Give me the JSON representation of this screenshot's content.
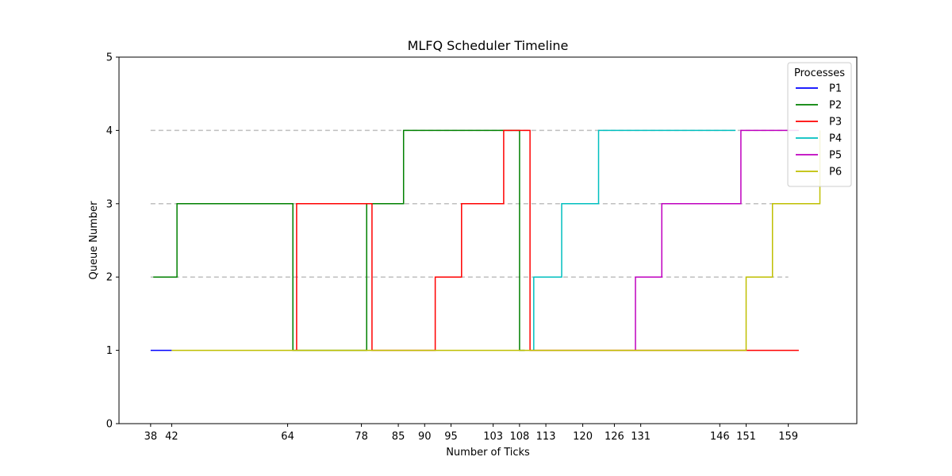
{
  "chart_data": {
    "type": "line",
    "title": "MLFQ Scheduler Timeline",
    "xlabel": "Number of Ticks",
    "ylabel": "Queue Number",
    "xlim": [
      32,
      172
    ],
    "ylim": [
      0,
      5
    ],
    "xticks": [
      38,
      42,
      64,
      78,
      85,
      90,
      95,
      103,
      108,
      113,
      120,
      126,
      131,
      146,
      151,
      159
    ],
    "yticks": [
      0,
      1,
      2,
      3,
      4,
      5
    ],
    "grid": false,
    "reference_lines": [
      {
        "y": 2,
        "x_from": 38,
        "x_to": 159
      },
      {
        "y": 3,
        "x_from": 38,
        "x_to": 159
      },
      {
        "y": 4,
        "x_from": 38,
        "x_to": 159
      }
    ],
    "legend": {
      "title": "Processes",
      "position": "top-right"
    },
    "series": [
      {
        "name": "P1",
        "color": "#0000ff",
        "points": [
          [
            38,
            1
          ],
          [
            42,
            1
          ]
        ]
      },
      {
        "name": "P2",
        "color": "#008000",
        "points": [
          [
            38.5,
            2
          ],
          [
            43,
            2
          ],
          [
            43,
            3
          ],
          [
            65,
            3
          ],
          [
            65,
            1
          ],
          [
            79,
            1
          ],
          [
            79,
            3
          ],
          [
            86,
            3
          ],
          [
            86,
            4
          ],
          [
            108,
            4
          ],
          [
            108,
            1
          ],
          [
            109,
            1
          ]
        ]
      },
      {
        "name": "P3",
        "color": "#ff0000",
        "points": [
          [
            65.7,
            1
          ],
          [
            65.7,
            3
          ],
          [
            80,
            3
          ],
          [
            80,
            1
          ],
          [
            92,
            1
          ],
          [
            92,
            2
          ],
          [
            97,
            2
          ],
          [
            97,
            3
          ],
          [
            105,
            3
          ],
          [
            105,
            4
          ],
          [
            110,
            4
          ],
          [
            110,
            1
          ],
          [
            161,
            1
          ]
        ]
      },
      {
        "name": "P4",
        "color": "#00bfbf",
        "points": [
          [
            110.7,
            1
          ],
          [
            110.7,
            2
          ],
          [
            116,
            2
          ],
          [
            116,
            3
          ],
          [
            123,
            3
          ],
          [
            123,
            4
          ],
          [
            149,
            4
          ]
        ]
      },
      {
        "name": "P5",
        "color": "#bf00bf",
        "points": [
          [
            130,
            1
          ],
          [
            130,
            2
          ],
          [
            135,
            2
          ],
          [
            135,
            3
          ],
          [
            150,
            3
          ],
          [
            150,
            4
          ],
          [
            161,
            4
          ]
        ]
      },
      {
        "name": "P6",
        "color": "#bfbf00",
        "points": [
          [
            42,
            1
          ],
          [
            151,
            1
          ],
          [
            151,
            2
          ],
          [
            156,
            2
          ],
          [
            156,
            3
          ],
          [
            165,
            3
          ],
          [
            165,
            4
          ]
        ]
      }
    ]
  }
}
